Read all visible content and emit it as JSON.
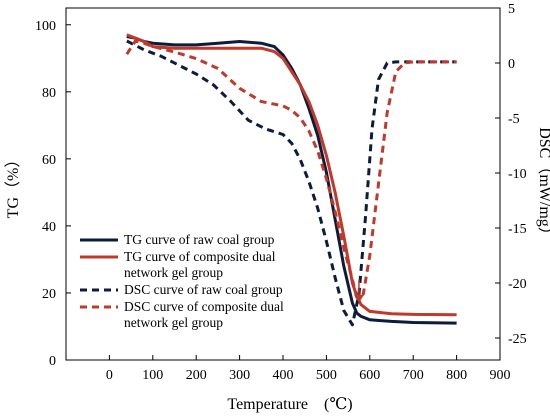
{
  "chart_data": {
    "type": "line",
    "xlabel": "Temperature　(℃)",
    "ylabel_left": "TG（%）",
    "ylabel_right": "DSC（mW/mg）",
    "xlim": [
      -100,
      900
    ],
    "ylim_left": [
      0,
      105
    ],
    "ylim_right": [
      -27,
      5
    ],
    "xticks": [
      0,
      100,
      200,
      300,
      400,
      500,
      600,
      700,
      800,
      900
    ],
    "yticks_left": [
      0,
      20,
      40,
      60,
      80,
      100
    ],
    "yticks_right": [
      5,
      0,
      -5,
      -10,
      -15,
      -20,
      -25
    ],
    "grid": false,
    "legend_position": "bottom-left",
    "annotations": [
      {
        "type": "arrow",
        "from": [
          575,
          -19.7
        ],
        "to": [
          575,
          -21.8
        ],
        "color": "#c0392b"
      }
    ],
    "series": [
      {
        "name": "TG curve of raw coal group",
        "axis": "left",
        "style": "solid",
        "color": "#0d1b3d",
        "x": [
          40,
          60,
          80,
          100,
          150,
          200,
          250,
          300,
          350,
          380,
          400,
          420,
          440,
          460,
          480,
          500,
          520,
          540,
          560,
          570,
          580,
          600,
          650,
          700,
          800
        ],
        "y": [
          96.5,
          96,
          95,
          94.5,
          94,
          94,
          94.5,
          95,
          94.5,
          93.5,
          91,
          87,
          82,
          75,
          67,
          56,
          42,
          28,
          17,
          14,
          13,
          12,
          11.5,
          11.2,
          11
        ]
      },
      {
        "name": "TG curve of composite dual network gel group",
        "axis": "left",
        "style": "solid",
        "color": "#c0392b",
        "x": [
          40,
          60,
          80,
          100,
          150,
          200,
          250,
          300,
          350,
          380,
          400,
          420,
          440,
          460,
          480,
          500,
          520,
          540,
          560,
          570,
          580,
          600,
          650,
          700,
          800
        ],
        "y": [
          97,
          96,
          95,
          93.5,
          93,
          93,
          93,
          93,
          93,
          92,
          90,
          86,
          82,
          77,
          70,
          61,
          50,
          37,
          23,
          19,
          16.5,
          14.5,
          13.8,
          13.6,
          13.5
        ]
      },
      {
        "name": "DSC curve of raw coal group",
        "axis": "right",
        "style": "dashed",
        "color": "#0d1b3d",
        "x": [
          40,
          80,
          120,
          160,
          200,
          240,
          280,
          320,
          360,
          400,
          420,
          440,
          460,
          480,
          500,
          520,
          540,
          560,
          575,
          590,
          605,
          620,
          640,
          660,
          700,
          800
        ],
        "y": [
          2.0,
          1.2,
          0.6,
          -0.2,
          -1.0,
          -2.0,
          -3.5,
          -5.2,
          -6.0,
          -6.5,
          -7.3,
          -8.8,
          -10.8,
          -13.2,
          -16.2,
          -19.5,
          -22.5,
          -23.8,
          -21.0,
          -14.0,
          -6.0,
          -1.5,
          0.0,
          0.1,
          0.1,
          0.1
        ]
      },
      {
        "name": "DSC curve of composite dual network gel group",
        "axis": "right",
        "style": "dashed",
        "color": "#c0392b",
        "x": [
          40,
          60,
          80,
          100,
          150,
          200,
          250,
          300,
          350,
          400,
          420,
          440,
          460,
          480,
          500,
          520,
          540,
          560,
          570,
          585,
          600,
          620,
          640,
          660,
          680,
          700,
          800
        ],
        "y": [
          0.8,
          2.0,
          1.8,
          1.5,
          1.0,
          0.4,
          -0.5,
          -2.3,
          -3.5,
          -3.9,
          -4.3,
          -5.0,
          -6.2,
          -8.0,
          -10.5,
          -13.5,
          -16.8,
          -19.7,
          -21.3,
          -21.0,
          -17.5,
          -11.0,
          -4.5,
          -0.8,
          0.0,
          0.1,
          0.1
        ]
      }
    ]
  }
}
